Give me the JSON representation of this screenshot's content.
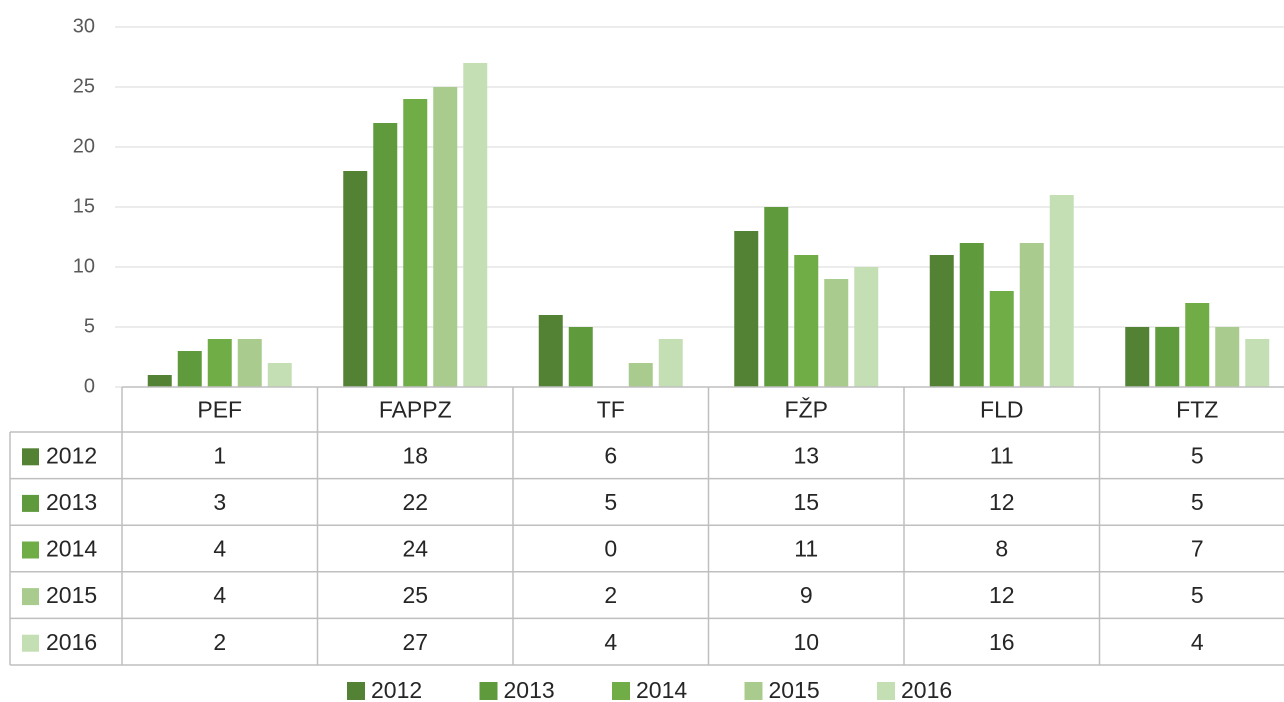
{
  "chart_data": {
    "type": "bar",
    "categories": [
      "PEF",
      "FAPPZ",
      "TF",
      "FŽP",
      "FLD",
      "FTZ"
    ],
    "series": [
      {
        "name": "2012",
        "color": "#548235",
        "values": [
          1,
          18,
          6,
          13,
          11,
          5
        ]
      },
      {
        "name": "2013",
        "color": "#5f9a3d",
        "values": [
          3,
          22,
          5,
          15,
          12,
          5
        ]
      },
      {
        "name": "2014",
        "color": "#70ad47",
        "values": [
          4,
          24,
          0,
          11,
          8,
          7
        ]
      },
      {
        "name": "2015",
        "color": "#a9cc8e",
        "values": [
          4,
          25,
          2,
          9,
          12,
          5
        ]
      },
      {
        "name": "2016",
        "color": "#c5dfb4",
        "values": [
          2,
          27,
          4,
          10,
          16,
          4
        ]
      }
    ],
    "ylim": [
      0,
      30
    ],
    "yticks": [
      0,
      5,
      10,
      15,
      20,
      25,
      30
    ],
    "grid": true
  }
}
